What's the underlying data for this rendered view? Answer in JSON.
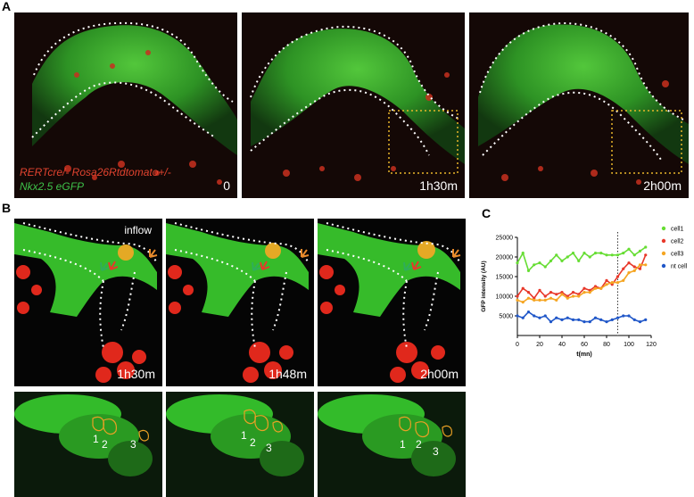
{
  "panel_labels": {
    "a": "A",
    "b": "B",
    "c": "C"
  },
  "row_a": {
    "timestamps": [
      "0",
      "1h30m",
      "2h00m"
    ],
    "legend_line1": "RERTcre/- Rosa26Rtdtomato+/-",
    "legend_line2": "Nkx2.5 eGFP"
  },
  "row_b": {
    "inflow_label": "inflow",
    "timestamps": [
      "1h30m",
      "1h48m",
      "2h00m"
    ],
    "cell_numbers": [
      "1",
      "2",
      "3"
    ]
  },
  "chart_data": {
    "type": "line",
    "xlabel": "t(mn)",
    "ylabel": "GFP intensity (AU)",
    "xlim": [
      0,
      120
    ],
    "ylim": [
      0,
      25000
    ],
    "xticks": [
      0,
      20,
      40,
      60,
      80,
      100,
      120
    ],
    "yticks": [
      5000,
      10000,
      15000,
      20000,
      25000
    ],
    "vline_x": 90,
    "legend_position": "right",
    "x": [
      0,
      5,
      10,
      15,
      20,
      25,
      30,
      35,
      40,
      45,
      50,
      55,
      60,
      65,
      70,
      75,
      80,
      85,
      90,
      95,
      100,
      105,
      110,
      115
    ],
    "series": [
      {
        "name": "cell1",
        "color": "#66dd33",
        "values": [
          18500,
          21000,
          16500,
          18000,
          18500,
          17500,
          19000,
          20500,
          19000,
          20000,
          21000,
          19000,
          21000,
          20000,
          21000,
          21000,
          20500,
          20500,
          20500,
          21000,
          22000,
          20500,
          21500,
          22500
        ]
      },
      {
        "name": "cell2",
        "color": "#e8382a",
        "values": [
          10000,
          12000,
          11000,
          9500,
          11500,
          10000,
          11000,
          10500,
          11000,
          10000,
          11000,
          10500,
          12000,
          11500,
          12500,
          12000,
          14000,
          13000,
          15000,
          17000,
          18500,
          17500,
          17000,
          20500
        ]
      },
      {
        "name": "cell3",
        "color": "#f5a623",
        "values": [
          9000,
          8500,
          9500,
          9000,
          9000,
          9000,
          9500,
          9000,
          10500,
          9500,
          10000,
          10000,
          11000,
          11000,
          12000,
          12000,
          13000,
          13500,
          13500,
          14000,
          16000,
          16500,
          18000,
          18000
        ]
      },
      {
        "name": "nt cell",
        "color": "#1f56c8",
        "values": [
          5000,
          4500,
          6000,
          5000,
          4500,
          5000,
          3500,
          4500,
          4000,
          4500,
          4000,
          4000,
          3500,
          3500,
          4500,
          4000,
          3500,
          4000,
          4500,
          5000,
          5000,
          4000,
          3500,
          4000
        ]
      }
    ]
  }
}
